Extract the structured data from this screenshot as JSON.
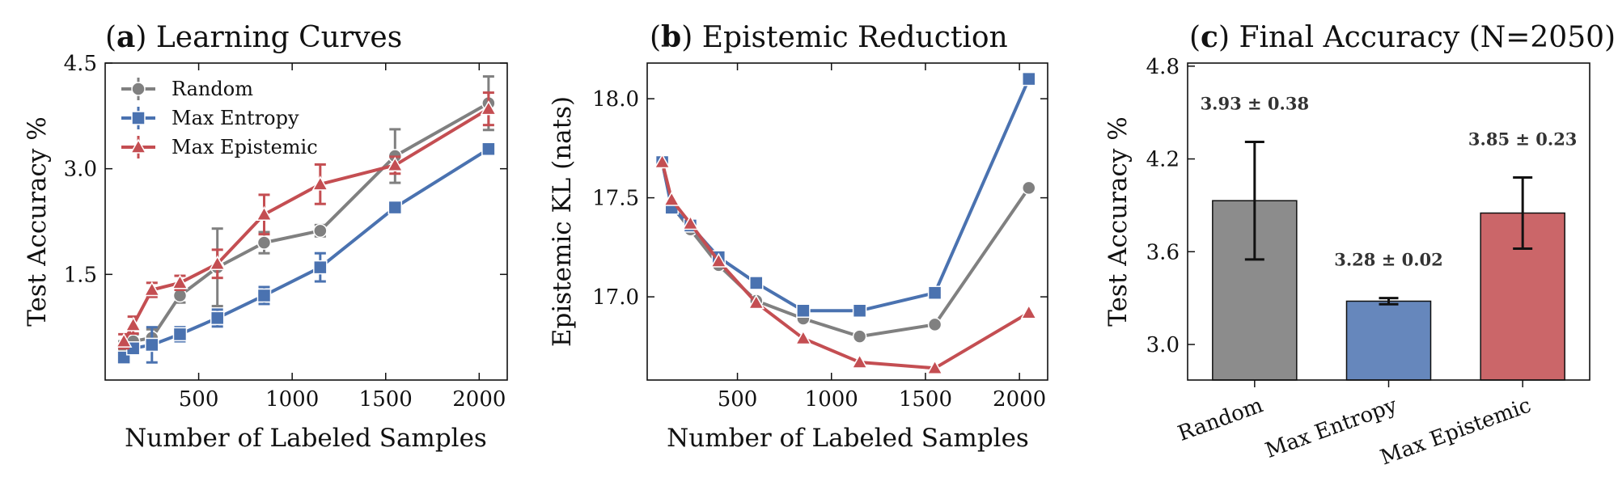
{
  "chart_data": [
    {
      "type": "line",
      "panel_letter": "a",
      "title": "Learning Curves",
      "xlabel": "Number of Labeled Samples",
      "ylabel": "Test Accuracy %",
      "xlim": [
        0,
        2150
      ],
      "ylim": [
        0,
        4.5
      ],
      "xticks": [
        500,
        1000,
        1500,
        2000
      ],
      "yticks": [
        1.5,
        3.0,
        4.5
      ],
      "ytick_labels": [
        "1.5",
        "3.0",
        "4.5"
      ],
      "legend_position": "top-left",
      "series": [
        {
          "name": "Random",
          "color": "#808080",
          "marker": "circle",
          "x": [
            100,
            150,
            250,
            400,
            600,
            850,
            1150,
            1550,
            2050
          ],
          "y": [
            0.45,
            0.55,
            0.6,
            1.2,
            1.6,
            1.95,
            2.12,
            3.18,
            3.93
          ],
          "err": [
            0.1,
            0.1,
            0.12,
            0.1,
            0.55,
            0.15,
            0.08,
            0.38,
            0.38
          ]
        },
        {
          "name": "Max Entropy",
          "color": "#4a72b0",
          "marker": "square",
          "x": [
            100,
            150,
            250,
            400,
            600,
            850,
            1150,
            1550,
            2050
          ],
          "y": [
            0.32,
            0.45,
            0.5,
            0.65,
            0.88,
            1.2,
            1.6,
            2.45,
            3.28
          ],
          "err": [
            0.08,
            0.08,
            0.25,
            0.1,
            0.12,
            0.12,
            0.2,
            0.05,
            0.02
          ]
        },
        {
          "name": "Max Epistemic",
          "color": "#c44e52",
          "marker": "triangle",
          "x": [
            100,
            150,
            250,
            400,
            600,
            850,
            1150,
            1550,
            2050
          ],
          "y": [
            0.55,
            0.78,
            1.28,
            1.38,
            1.65,
            2.35,
            2.78,
            3.05,
            3.85
          ],
          "err": [
            0.1,
            0.12,
            0.1,
            0.1,
            0.2,
            0.28,
            0.28,
            0.12,
            0.23
          ]
        }
      ]
    },
    {
      "type": "line",
      "panel_letter": "b",
      "title": "Epistemic Reduction",
      "xlabel": "Number of Labeled Samples",
      "ylabel": "Epistemic KL (nats)",
      "xlim": [
        20,
        2150
      ],
      "ylim": [
        16.58,
        18.18
      ],
      "xticks": [
        500,
        1000,
        1500,
        2000
      ],
      "yticks": [
        17.0,
        17.5,
        18.0
      ],
      "ytick_labels": [
        "17.0",
        "17.5",
        "18.0"
      ],
      "series": [
        {
          "name": "Random",
          "color": "#808080",
          "marker": "circle",
          "x": [
            100,
            150,
            250,
            400,
            600,
            850,
            1150,
            1550,
            2050
          ],
          "y": [
            17.68,
            17.46,
            17.34,
            17.16,
            16.98,
            16.89,
            16.8,
            16.86,
            17.55
          ]
        },
        {
          "name": "Max Entropy",
          "color": "#4a72b0",
          "marker": "square",
          "x": [
            100,
            150,
            250,
            400,
            600,
            850,
            1150,
            1550,
            2050
          ],
          "y": [
            17.68,
            17.45,
            17.36,
            17.2,
            17.07,
            16.93,
            16.93,
            17.02,
            18.1
          ]
        },
        {
          "name": "Max Epistemic",
          "color": "#c44e52",
          "marker": "triangle",
          "x": [
            100,
            150,
            250,
            400,
            600,
            850,
            1150,
            1550,
            2050
          ],
          "y": [
            17.68,
            17.49,
            17.37,
            17.18,
            16.97,
            16.79,
            16.67,
            16.64,
            16.92
          ]
        }
      ]
    },
    {
      "type": "bar",
      "panel_letter": "c",
      "title": "Final Accuracy (N=2050)",
      "xlabel": "",
      "ylabel": "Test Accuracy %",
      "ylim": [
        2.77,
        4.82
      ],
      "yticks": [
        3.0,
        3.6,
        4.2,
        4.8
      ],
      "ytick_labels": [
        "3.0",
        "3.6",
        "4.2",
        "4.8"
      ],
      "categories": [
        "Random",
        "Max Entropy",
        "Max Epistemic"
      ],
      "values": [
        3.93,
        3.28,
        3.85
      ],
      "errors": [
        0.38,
        0.02,
        0.23
      ],
      "colors": [
        "#8c8c8c",
        "#6687bc",
        "#cb6669"
      ],
      "labels": [
        "3.93 ± 0.38",
        "3.28 ± 0.02",
        "3.85 ± 0.23"
      ]
    }
  ]
}
